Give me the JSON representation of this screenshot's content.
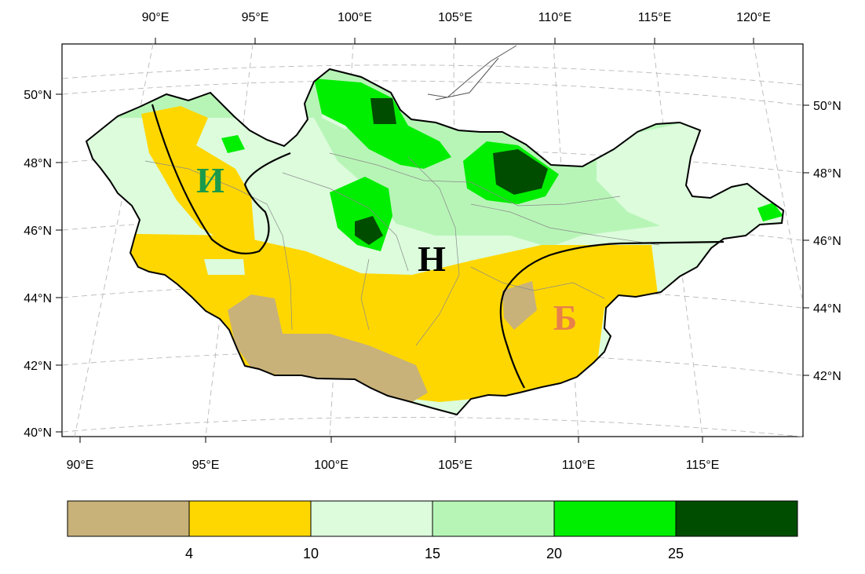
{
  "map": {
    "top_longitude_labels": [
      "90°E",
      "95°E",
      "100°E",
      "105°E",
      "110°E",
      "115°E",
      "120°E"
    ],
    "bottom_longitude_labels": [
      "90°E",
      "95°E",
      "100°E",
      "105°E",
      "110°E",
      "115°E"
    ],
    "left_latitude_labels": [
      "50°N",
      "48°N",
      "46°N",
      "44°N",
      "42°N",
      "40°N"
    ],
    "right_latitude_labels": [
      "50°N",
      "48°N",
      "46°N",
      "44°N",
      "42°N"
    ],
    "zone_labels": [
      {
        "letter": "И",
        "color": "#1a9a4a"
      },
      {
        "letter": "Н",
        "color": "#000000"
      },
      {
        "letter": "Б",
        "color": "#e8804a"
      }
    ],
    "ocean_color": "#ffffff",
    "gridline_style": "dashed"
  },
  "colorbar": {
    "colors": [
      "#c8b27a",
      "#ffd700",
      "#dcfcdc",
      "#b7f5b7",
      "#00ee00",
      "#004d00"
    ],
    "tick_labels": [
      "4",
      "10",
      "15",
      "20",
      "25"
    ]
  }
}
